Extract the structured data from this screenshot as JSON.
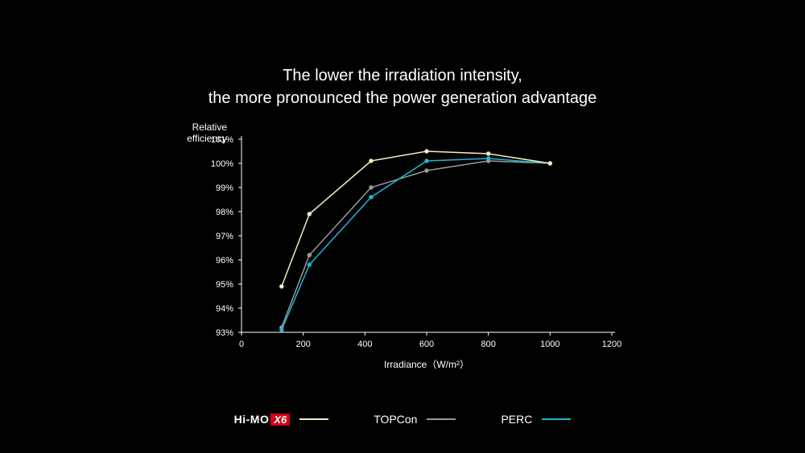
{
  "title_line1": "The lower the irradiation intensity,",
  "title_line2": "the more pronounced the power generation advantage",
  "chart": {
    "type": "line",
    "background_color": "#000000",
    "axis_color": "#ffffff",
    "text_color": "#ffffff",
    "title_fontsize": 20,
    "label_fontsize": 12,
    "tick_fontsize": 11,
    "y_axis_label_line1": "Relative",
    "y_axis_label_line2": "efficiency",
    "x_axis_label": "Irradiance（W/m²）",
    "xlim": [
      0,
      1200
    ],
    "ylim": [
      93,
      101
    ],
    "xticks": [
      0,
      200,
      400,
      600,
      800,
      1000,
      1200
    ],
    "yticks": [
      93,
      94,
      95,
      96,
      97,
      98,
      99,
      100,
      101
    ],
    "ytick_suffix": "%",
    "marker_radius": 2.5,
    "line_width": 1.5,
    "series": [
      {
        "name": "Hi-MO X6",
        "legend_label_main": "Hi-MO",
        "legend_label_badge": "X6",
        "color": "#f5ecc5",
        "marker_fill": "#f5ecc5",
        "x": [
          130,
          220,
          420,
          600,
          800,
          1000
        ],
        "y": [
          94.9,
          97.9,
          100.1,
          100.5,
          100.4,
          100.0
        ]
      },
      {
        "name": "TOPCon",
        "legend_label": "TOPCon",
        "color": "#9a9a9a",
        "marker_fill": "#9a9a9a",
        "x": [
          130,
          220,
          420,
          600,
          800,
          1000
        ],
        "y": [
          93.2,
          96.2,
          99.0,
          99.7,
          100.1,
          100.0
        ]
      },
      {
        "name": "PERC",
        "legend_label": "PERC",
        "color": "#1fb6d6",
        "marker_fill": "#1fb6d6",
        "x": [
          130,
          220,
          420,
          600,
          800,
          1000
        ],
        "y": [
          93.1,
          95.8,
          98.6,
          100.1,
          100.2,
          100.0
        ]
      }
    ]
  },
  "legend_badge_bg": "#d4001a"
}
